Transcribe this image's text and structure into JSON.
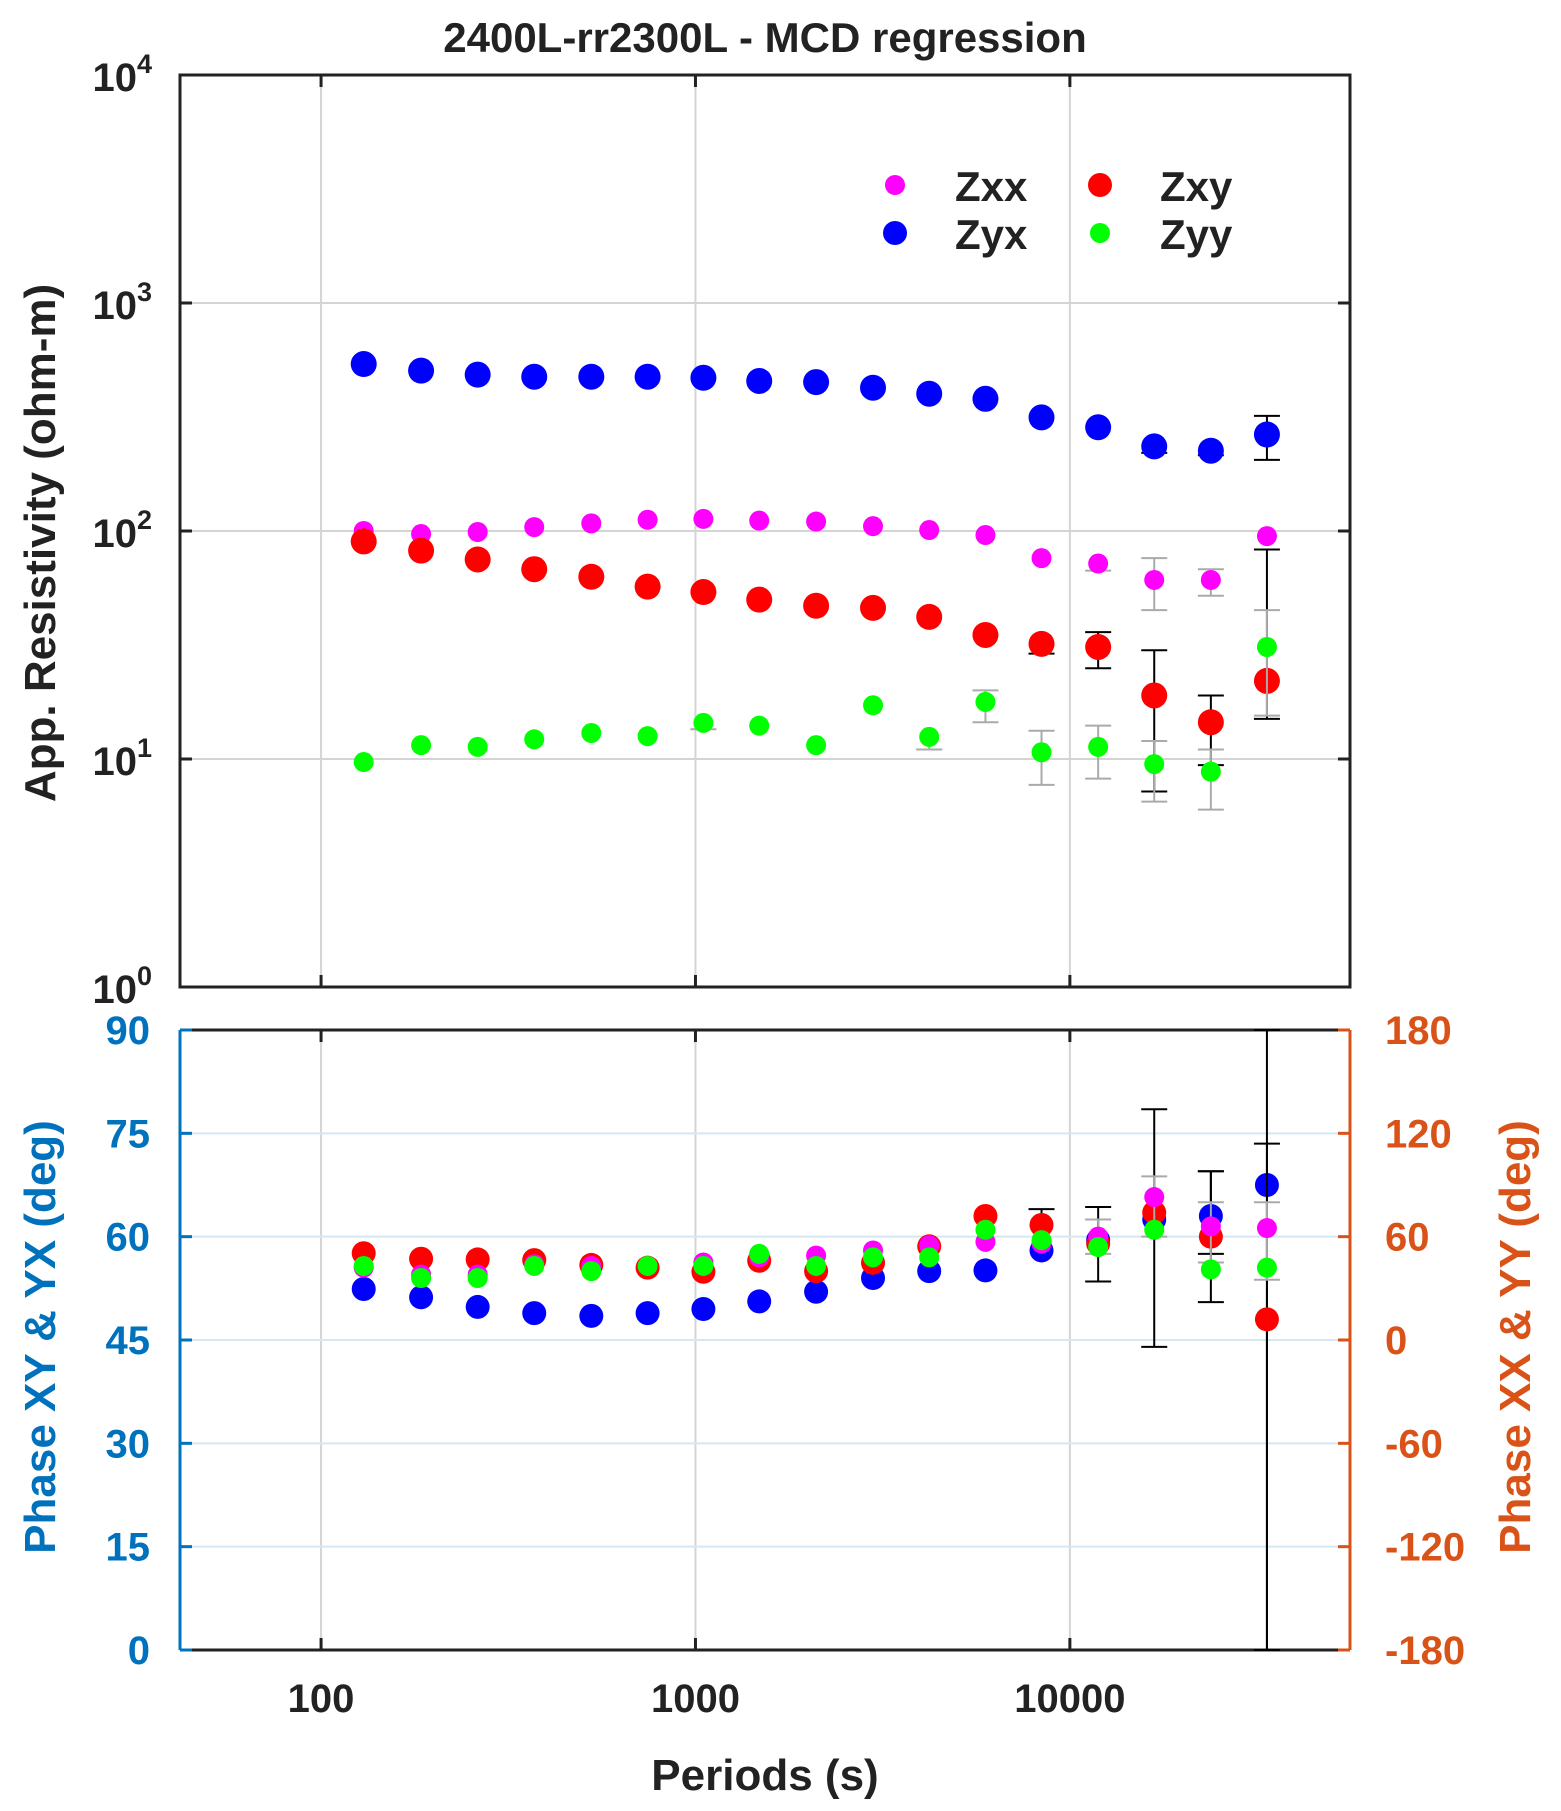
{
  "chart_data": {
    "title": "2400L-rr2300L - MCD regression",
    "xlabel": "Periods (s)",
    "x_scale": "log",
    "xlim": [
      42,
      56000
    ],
    "x_ticks": [
      100,
      1000,
      10000
    ],
    "x_tick_labels": [
      "100",
      "1000",
      "10000"
    ],
    "periods": [
      130,
      185,
      262,
      371,
      527,
      745,
      1050,
      1480,
      2100,
      2980,
      4210,
      5950,
      8400,
      11900,
      16800,
      23800,
      33600
    ],
    "colors": {
      "Zxx": "#ff00ff",
      "Zxy": "#ff0000",
      "Zyx": "#0000ff",
      "Zyy": "#00ff00"
    },
    "legend": {
      "placement": "top-right",
      "entries": [
        {
          "name": "Zxx",
          "key": "Zxx"
        },
        {
          "name": "Zxy",
          "key": "Zxy"
        },
        {
          "name": "Zyx",
          "key": "Zyx"
        },
        {
          "name": "Zyy",
          "key": "Zyy"
        }
      ]
    },
    "resistivity": {
      "type": "scatter",
      "ylabel": "App. Resistivity (ohm-m)",
      "y_scale": "log",
      "ylim": [
        1,
        10000
      ],
      "y_ticks": [
        {
          "value": 1,
          "base": "10",
          "exp": "0"
        },
        {
          "value": 10,
          "base": "10",
          "exp": "1"
        },
        {
          "value": 100,
          "base": "10",
          "exp": "2"
        },
        {
          "value": 1000,
          "base": "10",
          "exp": "3"
        },
        {
          "value": 10000,
          "base": "10",
          "exp": "4"
        }
      ],
      "grid": true,
      "series": [
        {
          "name": "Zyx",
          "key": "Zyx",
          "errorbar_color": "#000000",
          "values": [
            540,
            505,
            485,
            475,
            475,
            475,
            470,
            455,
            450,
            425,
            400,
            380,
            315,
            285,
            235,
            225,
            265
          ],
          "err_low": [
            null,
            null,
            null,
            null,
            null,
            null,
            null,
            null,
            null,
            null,
            null,
            null,
            null,
            null,
            220,
            215,
            205
          ],
          "err_high": [
            null,
            null,
            null,
            null,
            null,
            null,
            null,
            null,
            null,
            null,
            null,
            null,
            null,
            null,
            null,
            null,
            320
          ]
        },
        {
          "name": "Zxx",
          "key": "Zxx",
          "errorbar_color": "#aaaaaa",
          "values": [
            100,
            97,
            99,
            104,
            108,
            112,
            113,
            111,
            110,
            105,
            101,
            96,
            76,
            72,
            61,
            61,
            95
          ],
          "err_low": [
            null,
            null,
            null,
            null,
            null,
            null,
            null,
            null,
            null,
            null,
            null,
            null,
            null,
            67,
            45,
            52,
            null
          ],
          "err_high": [
            null,
            null,
            null,
            null,
            null,
            null,
            null,
            null,
            null,
            null,
            null,
            null,
            null,
            null,
            76,
            68,
            null
          ]
        },
        {
          "name": "Zxy",
          "key": "Zxy",
          "errorbar_color": "#000000",
          "values": [
            90,
            82,
            75,
            68,
            63,
            57,
            54,
            50,
            47,
            46,
            42,
            35,
            32,
            31,
            19,
            14.5,
            22
          ],
          "err_low": [
            null,
            null,
            null,
            null,
            null,
            null,
            null,
            null,
            null,
            null,
            null,
            null,
            29,
            25,
            7.2,
            9.4,
            15
          ],
          "err_high": [
            null,
            null,
            null,
            null,
            null,
            null,
            null,
            null,
            null,
            null,
            null,
            null,
            null,
            36,
            30,
            19,
            83
          ]
        },
        {
          "name": "Zyy",
          "key": "Zyy",
          "errorbar_color": "#aaaaaa",
          "values": [
            9.7,
            11.5,
            11.3,
            12.2,
            13.0,
            12.6,
            14.4,
            14.0,
            11.5,
            17.2,
            12.5,
            17.8,
            10.7,
            11.3,
            9.5,
            8.8,
            31
          ],
          "err_low": [
            null,
            null,
            null,
            null,
            null,
            null,
            null,
            null,
            null,
            null,
            11,
            14.5,
            7.7,
            8.2,
            6.5,
            6,
            15.5
          ],
          "err_high": [
            null,
            null,
            null,
            null,
            null,
            null,
            13.5,
            null,
            null,
            null,
            null,
            20,
            13.3,
            14,
            12,
            11,
            45
          ]
        }
      ]
    },
    "phase": {
      "type": "scatter",
      "ylabel_left": "Phase XY & YX (deg)",
      "ylabel_right": "Phase XX & YY (deg)",
      "ylim_left": [
        0,
        90
      ],
      "ylim_right": [
        -180,
        180
      ],
      "y_ticks_left": [
        "0",
        "15",
        "30",
        "45",
        "60",
        "75",
        "90"
      ],
      "y_ticks_right": [
        "-180",
        "-120",
        "-60",
        "0",
        "60",
        "120",
        "180"
      ],
      "left_axis_color": "#0072bd",
      "right_axis_color": "#d95319",
      "grid": true,
      "series": [
        {
          "name": "Zyx",
          "key": "Zyx",
          "axis": "left",
          "errorbar_color": "#000000",
          "values": [
            52.4,
            51.2,
            49.8,
            48.9,
            48.5,
            48.9,
            49.5,
            50.6,
            52.0,
            54.0,
            55.0,
            55.1,
            58.0,
            59.5,
            62.5,
            63.0,
            67.5
          ],
          "err_low": [
            null,
            null,
            null,
            null,
            null,
            null,
            null,
            null,
            null,
            null,
            null,
            null,
            null,
            null,
            null,
            57.5,
            0
          ],
          "err_high": [
            null,
            null,
            null,
            null,
            null,
            null,
            null,
            null,
            null,
            null,
            null,
            null,
            null,
            null,
            null,
            69.5,
            90
          ]
        },
        {
          "name": "Zxy",
          "key": "Zxy",
          "axis": "left",
          "errorbar_color": "#000000",
          "values": [
            57.6,
            56.8,
            56.7,
            56.6,
            55.9,
            55.5,
            54.9,
            56.5,
            55.0,
            56.2,
            58.6,
            63.0,
            61.7,
            59.0,
            63.5,
            60.0,
            48.0
          ],
          "err_low": [
            null,
            null,
            null,
            null,
            null,
            null,
            null,
            null,
            null,
            null,
            null,
            null,
            null,
            53.5,
            44.0,
            50.5,
            0
          ],
          "err_high": [
            null,
            null,
            null,
            null,
            null,
            null,
            null,
            null,
            null,
            null,
            null,
            null,
            64,
            64.3,
            78.5,
            69.5,
            73.5
          ]
        },
        {
          "name": "Zxx",
          "key": "Zxx",
          "axis": "right",
          "errorbar_color": "#aaaaaa",
          "values": [
            42,
            38,
            38,
            44,
            43,
            43,
            45,
            48,
            49,
            52,
            55,
            57,
            56,
            60,
            83,
            66,
            65
          ],
          "err_low": [
            null,
            null,
            null,
            null,
            null,
            null,
            null,
            null,
            null,
            null,
            null,
            null,
            null,
            50,
            60,
            45,
            35
          ],
          "err_high": [
            null,
            null,
            null,
            null,
            null,
            null,
            null,
            null,
            null,
            null,
            null,
            null,
            null,
            70,
            95,
            80,
            80
          ]
        },
        {
          "name": "Zyy",
          "key": "Zyy",
          "axis": "right",
          "errorbar_color": "#aaaaaa",
          "values": [
            43,
            36,
            36,
            43,
            40,
            43,
            43,
            50,
            43,
            48,
            48,
            64,
            58,
            54,
            64,
            41,
            42
          ],
          "err_low": [
            null,
            null,
            null,
            null,
            null,
            null,
            null,
            null,
            null,
            null,
            null,
            null,
            null,
            null,
            null,
            null,
            null
          ],
          "err_high": [
            null,
            null,
            null,
            null,
            null,
            null,
            null,
            null,
            null,
            null,
            null,
            null,
            null,
            null,
            null,
            null,
            null
          ]
        }
      ]
    }
  }
}
